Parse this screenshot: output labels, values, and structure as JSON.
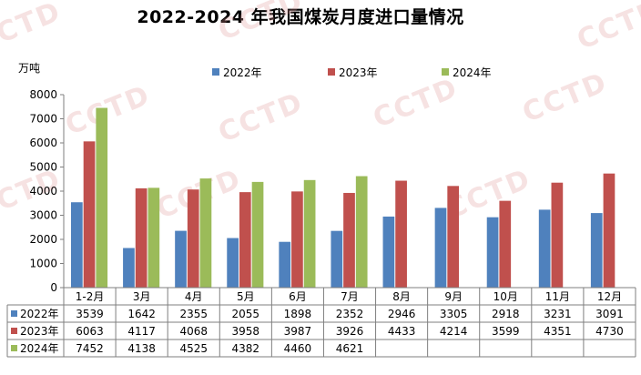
{
  "watermark": "CCTD",
  "chart_data": {
    "type": "bar",
    "title": "2022-2024 年我国煤炭月度进口量情况",
    "ylabel": "万吨",
    "ylim": [
      0,
      8000
    ],
    "yticks": [
      0,
      1000,
      2000,
      3000,
      4000,
      5000,
      6000,
      7000,
      8000
    ],
    "categories": [
      "1-2月",
      "3月",
      "4月",
      "5月",
      "6月",
      "7月",
      "8月",
      "9月",
      "10月",
      "11月",
      "12月"
    ],
    "series": [
      {
        "name": "2022年",
        "color": "#4F81BD",
        "values": [
          3539,
          1642,
          2355,
          2055,
          1898,
          2352,
          2946,
          3305,
          2918,
          3231,
          3091
        ]
      },
      {
        "name": "2023年",
        "color": "#C0504D",
        "values": [
          6063,
          4117,
          4068,
          3958,
          3987,
          3926,
          4433,
          4214,
          3599,
          4351,
          4730
        ]
      },
      {
        "name": "2024年",
        "color": "#9BBB59",
        "values": [
          7452,
          4138,
          4525,
          4382,
          4460,
          4621,
          null,
          null,
          null,
          null,
          null
        ]
      }
    ],
    "legend": "top",
    "grid": false,
    "data_table": true
  }
}
